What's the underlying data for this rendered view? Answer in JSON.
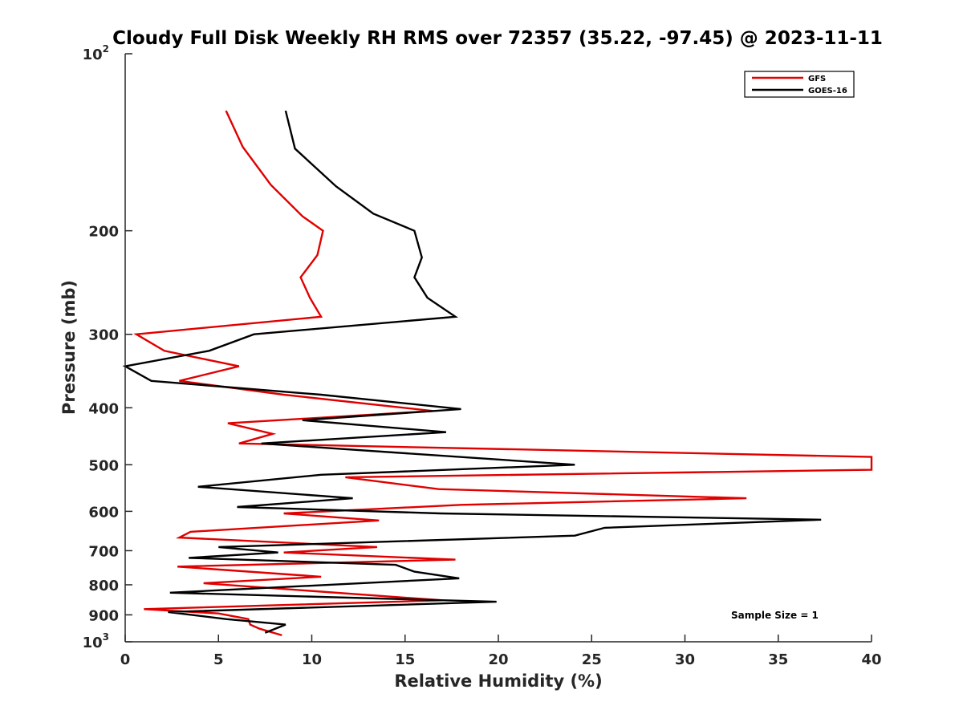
{
  "chart_data": {
    "type": "line",
    "title": "Cloudy Full Disk Weekly RH RMS over 72357 (35.22, -97.45) @ 2023-11-11",
    "xlabel": "Relative Humidity (%)",
    "ylabel": "Pressure (mb)",
    "xlim": [
      0,
      40
    ],
    "ylim": [
      100,
      1000
    ],
    "y_scale": "log",
    "y_reversed": true,
    "grid": false,
    "legend_position": "top-right",
    "x_ticks": [
      "0",
      "5",
      "10",
      "15",
      "20",
      "25",
      "30",
      "35",
      "40"
    ],
    "y_ticks": [
      {
        "value": 100,
        "base": "10",
        "exp": "2"
      },
      {
        "value": 200,
        "label": "200"
      },
      {
        "value": 300,
        "label": "300"
      },
      {
        "value": 400,
        "label": "400"
      },
      {
        "value": 500,
        "label": "500"
      },
      {
        "value": 600,
        "label": "600"
      },
      {
        "value": 700,
        "label": "700"
      },
      {
        "value": 800,
        "label": "800"
      },
      {
        "value": 900,
        "label": "900"
      },
      {
        "value": 1000,
        "base": "10",
        "exp": "3"
      }
    ],
    "annotation": "Sample Size = 1",
    "series": [
      {
        "name": "GFS",
        "color": "#e00000",
        "points": [
          [
            5.4,
            125
          ],
          [
            6.3,
            144
          ],
          [
            7.8,
            167
          ],
          [
            9.5,
            189
          ],
          [
            10.6,
            200
          ],
          [
            10.3,
            220
          ],
          [
            9.4,
            240
          ],
          [
            9.9,
            260
          ],
          [
            10.5,
            280
          ],
          [
            0.6,
            300
          ],
          [
            2.1,
            320
          ],
          [
            6.1,
            340
          ],
          [
            2.9,
            360
          ],
          [
            8.5,
            380
          ],
          [
            16.5,
            405
          ],
          [
            5.5,
            425
          ],
          [
            7.9,
            443
          ],
          [
            6.1,
            460
          ],
          [
            40.0,
            485
          ],
          [
            40.0,
            510
          ],
          [
            11.8,
            525
          ],
          [
            16.8,
            550
          ],
          [
            33.3,
            570
          ],
          [
            18.0,
            585
          ],
          [
            8.5,
            605
          ],
          [
            13.6,
            622
          ],
          [
            3.5,
            650
          ],
          [
            2.9,
            665
          ],
          [
            13.5,
            690
          ],
          [
            8.5,
            705
          ],
          [
            17.7,
            725
          ],
          [
            2.8,
            745
          ],
          [
            10.5,
            775
          ],
          [
            4.2,
            795
          ],
          [
            17.0,
            850
          ],
          [
            1.0,
            880
          ],
          [
            5.0,
            895
          ],
          [
            6.6,
            915
          ],
          [
            6.7,
            935
          ],
          [
            7.2,
            950
          ],
          [
            8.4,
            975
          ]
        ]
      },
      {
        "name": "GOES-16",
        "color": "#000000",
        "points": [
          [
            8.6,
            125
          ],
          [
            9.1,
            145
          ],
          [
            11.3,
            168
          ],
          [
            13.3,
            187
          ],
          [
            15.5,
            200
          ],
          [
            15.9,
            222
          ],
          [
            15.5,
            240
          ],
          [
            16.2,
            260
          ],
          [
            17.7,
            280
          ],
          [
            6.9,
            300
          ],
          [
            4.5,
            320
          ],
          [
            0.0,
            340
          ],
          [
            1.4,
            360
          ],
          [
            10.5,
            380
          ],
          [
            18.0,
            402
          ],
          [
            9.5,
            420
          ],
          [
            17.2,
            440
          ],
          [
            7.3,
            460
          ],
          [
            24.1,
            500
          ],
          [
            10.5,
            520
          ],
          [
            3.9,
            545
          ],
          [
            12.2,
            570
          ],
          [
            6.0,
            590
          ],
          [
            16.9,
            605
          ],
          [
            37.3,
            620
          ],
          [
            25.7,
            640
          ],
          [
            24.1,
            660
          ],
          [
            5.0,
            690
          ],
          [
            8.2,
            705
          ],
          [
            3.4,
            720
          ],
          [
            14.5,
            740
          ],
          [
            15.5,
            760
          ],
          [
            17.9,
            780
          ],
          [
            2.4,
            825
          ],
          [
            19.9,
            855
          ],
          [
            2.3,
            890
          ],
          [
            5.4,
            915
          ],
          [
            8.6,
            935
          ],
          [
            7.5,
            965
          ]
        ]
      }
    ]
  }
}
